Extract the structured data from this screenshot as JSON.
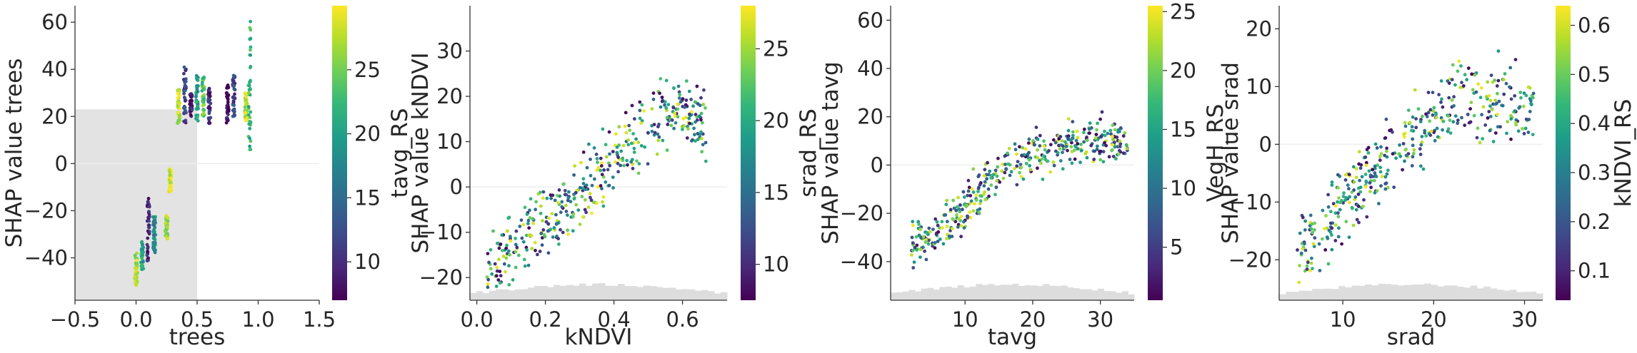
{
  "chart_data": [
    {
      "type": "scatter",
      "xlabel": "trees",
      "ylabel": "SHAP value trees",
      "xlim": [
        -0.5,
        1.5
      ],
      "ylim": [
        -58,
        67
      ],
      "xticks": [
        -0.5,
        0.0,
        0.5,
        1.0,
        1.5
      ],
      "xtick_labels": [
        "−0.5",
        "0.0",
        "0.5",
        "1.0",
        "1.5"
      ],
      "yticks": [
        -40,
        -20,
        0,
        20,
        40,
        60
      ],
      "ytick_labels": [
        "−40",
        "−20",
        "0",
        "20",
        "40",
        "60"
      ],
      "colorbar": {
        "label": "tavg_RS",
        "range": [
          7,
          30
        ],
        "ticks": [
          10,
          15,
          20,
          25
        ],
        "tick_labels": [
          "10",
          "15",
          "20",
          "25"
        ]
      },
      "shaded_region": {
        "x": [
          -0.5,
          0.5
        ],
        "y": [
          -58,
          23
        ]
      },
      "series": [
        {
          "x": 0.0,
          "y_min": -53,
          "y_max": -38,
          "color_value": 27
        },
        {
          "x": 0.05,
          "y_min": -45,
          "y_max": -33,
          "color_value": 20
        },
        {
          "x": 0.1,
          "y_min": -42,
          "y_max": -12,
          "color_value": 9
        },
        {
          "x": 0.15,
          "y_min": -38,
          "y_max": -22,
          "color_value": 18
        },
        {
          "x": 0.25,
          "y_min": -32,
          "y_max": -22,
          "color_value": 26
        },
        {
          "x": 0.28,
          "y_min": -12,
          "y_max": -2,
          "color_value": 29
        },
        {
          "x": 0.35,
          "y_min": 17,
          "y_max": 33,
          "color_value": 28
        },
        {
          "x": 0.4,
          "y_min": 17,
          "y_max": 41,
          "color_value": 12
        },
        {
          "x": 0.45,
          "y_min": 20,
          "y_max": 30,
          "color_value": 9
        },
        {
          "x": 0.5,
          "y_min": 18,
          "y_max": 38,
          "color_value": 20
        },
        {
          "x": 0.55,
          "y_min": 20,
          "y_max": 37,
          "color_value": 24
        },
        {
          "x": 0.6,
          "y_min": 17,
          "y_max": 32,
          "color_value": 10
        },
        {
          "x": 0.75,
          "y_min": 17,
          "y_max": 34,
          "color_value": 8
        },
        {
          "x": 0.8,
          "y_min": 20,
          "y_max": 38,
          "color_value": 12
        },
        {
          "x": 0.9,
          "y_min": 18,
          "y_max": 30,
          "color_value": 28
        },
        {
          "x": 0.93,
          "y_min": 5,
          "y_max": 61,
          "color_value": 22
        }
      ]
    },
    {
      "type": "scatter",
      "xlabel": "kNDVI",
      "ylabel": "SHAP value kNDVI",
      "xlim": [
        -0.02,
        0.73
      ],
      "ylim": [
        -25,
        40
      ],
      "xticks": [
        0.0,
        0.2,
        0.4,
        0.6
      ],
      "xtick_labels": [
        "0.0",
        "0.2",
        "0.4",
        "0.6"
      ],
      "yticks": [
        -20,
        -10,
        0,
        10,
        20,
        30
      ],
      "ytick_labels": [
        "−20",
        "−10",
        "0",
        "10",
        "20",
        "30"
      ],
      "colorbar": {
        "label": "srad_RS",
        "range": [
          7.5,
          28
        ],
        "ticks": [
          10,
          15,
          20,
          25
        ],
        "tick_labels": [
          "10",
          "15",
          "20",
          "25"
        ]
      },
      "trend": {
        "x": [
          0.03,
          0.1,
          0.2,
          0.3,
          0.4,
          0.5,
          0.58,
          0.62,
          0.67
        ],
        "y": [
          -20,
          -14,
          -8,
          -2,
          6,
          13,
          19,
          16,
          12
        ],
        "spread": 4
      }
    },
    {
      "type": "scatter",
      "xlabel": "tavg",
      "ylabel": "SHAP value tavg",
      "xlim": [
        -1,
        35
      ],
      "ylim": [
        -56,
        66
      ],
      "xticks": [
        10,
        20,
        30
      ],
      "xtick_labels": [
        "10",
        "20",
        "30"
      ],
      "yticks": [
        -40,
        -20,
        0,
        20,
        40,
        60
      ],
      "ytick_labels": [
        "−40",
        "−20",
        "0",
        "20",
        "40",
        "60"
      ],
      "colorbar": {
        "label": "VegH_RS",
        "range": [
          0.5,
          25.5
        ],
        "ticks": [
          5,
          10,
          15,
          20,
          25
        ],
        "tick_labels": [
          "5",
          "10",
          "15",
          "20",
          "25"
        ]
      },
      "trend": {
        "x": [
          2,
          6,
          10,
          14,
          18,
          22,
          26,
          30,
          34
        ],
        "y": [
          -33,
          -28,
          -18,
          -5,
          2,
          6,
          9,
          11,
          8
        ],
        "spread": 5
      }
    },
    {
      "type": "scatter",
      "xlabel": "srad",
      "ylabel": "SHAP value srad",
      "xlim": [
        3,
        32
      ],
      "ylim": [
        -27,
        24
      ],
      "xticks": [
        10,
        20,
        30
      ],
      "xtick_labels": [
        "10",
        "20",
        "30"
      ],
      "yticks": [
        -20,
        -10,
        0,
        10,
        20
      ],
      "ytick_labels": [
        "−20",
        "−10",
        "0",
        "10",
        "20"
      ],
      "colorbar": {
        "label": "kNDVI_RS",
        "range": [
          0.04,
          0.64
        ],
        "ticks": [
          0.1,
          0.2,
          0.3,
          0.4,
          0.5,
          0.6
        ],
        "tick_labels": [
          "0.1",
          "0.2",
          "0.3",
          "0.4",
          "0.5",
          "0.6"
        ]
      },
      "trend": {
        "x": [
          5,
          8,
          11,
          14,
          17,
          20,
          24,
          28,
          31
        ],
        "y": [
          -20,
          -15,
          -8,
          -4,
          0,
          5,
          8,
          7,
          6
        ],
        "spread": 3.5
      }
    }
  ],
  "colors": {
    "viridis": [
      "#440154",
      "#482878",
      "#3e4a89",
      "#31688e",
      "#26828e",
      "#1f9e89",
      "#35b779",
      "#6ece58",
      "#b5de2b",
      "#fde725"
    ],
    "shade": "#e3e3e3",
    "axis": "#333333"
  }
}
